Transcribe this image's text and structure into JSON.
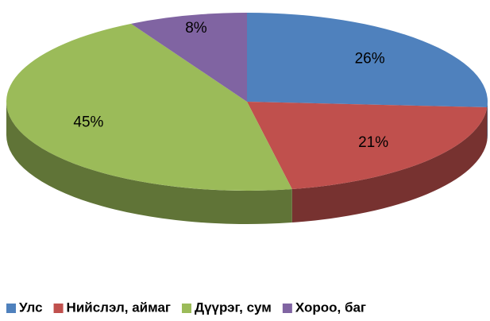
{
  "chart_data": {
    "type": "pie3d",
    "categories": [
      "Улс",
      "Нийслэл, аймаг",
      "Дүүрэг, сум",
      "Хороо, баг"
    ],
    "values": [
      26,
      21,
      45,
      8
    ],
    "value_labels": [
      "26%",
      "21%",
      "45%",
      "8%"
    ],
    "colors": [
      "#4f81bd",
      "#c0504d",
      "#9bbb59",
      "#8064a2"
    ],
    "legend": "bottom"
  }
}
